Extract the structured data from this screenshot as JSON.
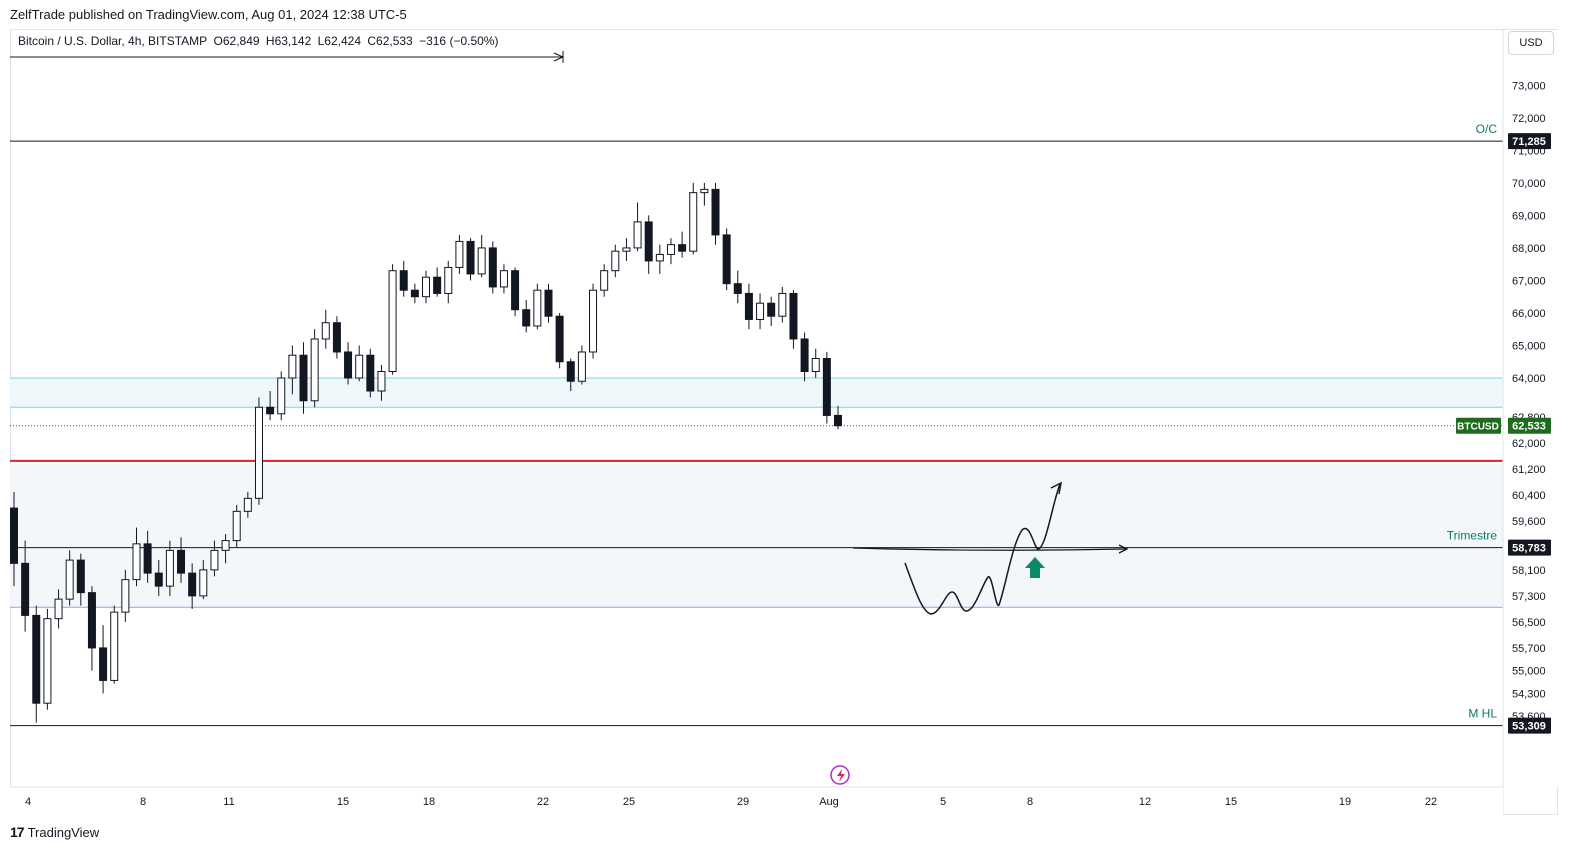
{
  "header": {
    "published_by": "ZelfTrade published on TradingView.com, Aug 01, 2024 12:38 UTC-5"
  },
  "legend": {
    "symbol_desc": "Bitcoin / U.S. Dollar, 4h, BITSTAMP",
    "open": "O62,849",
    "high": "H63,142",
    "low": "L62,424",
    "close": "C62,533",
    "change": "−316 (−0.50%)"
  },
  "currency_button": "USD",
  "footer": {
    "brand": "TradingView"
  },
  "colors": {
    "bear": "#131722",
    "bull_fill": "#ffffff",
    "zone_fill": "#eef8fb",
    "zone_line": "#7fd3e6",
    "support_zone_fill": "#f3f7fa",
    "support_line": "#90a8e0",
    "red_level": "#e31b2b",
    "price_tag": "#1e6b1e",
    "level_tag": "#131722",
    "buy_arrow": "#0b8a6a"
  },
  "chart_data": {
    "type": "candlestick",
    "symbol": "BTCUSD",
    "timeframe": "4h",
    "y_axis_ticks": [
      "73,000",
      "72,000",
      "71,000",
      "70,000",
      "69,000",
      "68,000",
      "67,000",
      "66,000",
      "65,000",
      "64,000",
      "62,800",
      "62,000",
      "61,200",
      "60,400",
      "59,600",
      "58,100",
      "57,300",
      "56,500",
      "55,700",
      "55,000",
      "54,300",
      "53,600"
    ],
    "x_axis_ticks": [
      "4",
      "8",
      "11",
      "15",
      "18",
      "22",
      "25",
      "29",
      "Aug",
      "5",
      "8",
      "12",
      "15",
      "19",
      "22"
    ],
    "last_price": {
      "label": "BTCUSD",
      "value": "62,533"
    },
    "levels": [
      {
        "value": "71,285",
        "label": "O/C",
        "color": "#131722"
      },
      {
        "value": "58,783",
        "label": "Trimestre",
        "color": "#131722"
      },
      {
        "value": "53,309",
        "label": "M HL",
        "color": "#131722"
      }
    ],
    "resistance_zone": {
      "top": 64000,
      "bottom": 63100
    },
    "red_level": 61450,
    "support_zone": {
      "top": 61350,
      "bottom": 56950
    },
    "candles_approx": [
      [
        60000,
        60500,
        57600,
        58300
      ],
      [
        58300,
        59000,
        56200,
        56700
      ],
      [
        56700,
        57000,
        53400,
        54000
      ],
      [
        54000,
        56900,
        53800,
        56600
      ],
      [
        56600,
        57500,
        56300,
        57200
      ],
      [
        57200,
        58700,
        57000,
        58400
      ],
      [
        58400,
        58600,
        57000,
        57400
      ],
      [
        57400,
        57600,
        55000,
        55700
      ],
      [
        55700,
        56400,
        54300,
        54700
      ],
      [
        54700,
        57000,
        54600,
        56800
      ],
      [
        56800,
        58100,
        56500,
        57800
      ],
      [
        57800,
        59400,
        57600,
        58900
      ],
      [
        58900,
        59300,
        57700,
        58000
      ],
      [
        58000,
        58400,
        57300,
        57600
      ],
      [
        57600,
        59000,
        57300,
        58700
      ],
      [
        58700,
        59100,
        57700,
        58000
      ],
      [
        58000,
        58300,
        56900,
        57300
      ],
      [
        57300,
        58400,
        57200,
        58100
      ],
      [
        58100,
        59000,
        57900,
        58700
      ],
      [
        58700,
        59200,
        58300,
        59000
      ],
      [
        59000,
        60100,
        58800,
        59900
      ],
      [
        59900,
        60500,
        59700,
        60300
      ],
      [
        60300,
        63400,
        60100,
        63100
      ],
      [
        63100,
        63600,
        62700,
        62900
      ],
      [
        62900,
        64200,
        62700,
        64000
      ],
      [
        64000,
        65000,
        63500,
        64700
      ],
      [
        64700,
        65100,
        62900,
        63300
      ],
      [
        63300,
        65500,
        63100,
        65200
      ],
      [
        65200,
        66100,
        64900,
        65700
      ],
      [
        65700,
        65900,
        64600,
        64800
      ],
      [
        64800,
        65100,
        63800,
        64000
      ],
      [
        64000,
        65000,
        63900,
        64700
      ],
      [
        64700,
        64900,
        63400,
        63600
      ],
      [
        63600,
        64400,
        63300,
        64200
      ],
      [
        64200,
        67500,
        64100,
        67300
      ],
      [
        67300,
        67600,
        66500,
        66700
      ],
      [
        66700,
        66900,
        66300,
        66500
      ],
      [
        66500,
        67300,
        66300,
        67100
      ],
      [
        67100,
        67400,
        66500,
        66600
      ],
      [
        66600,
        67600,
        66300,
        67400
      ],
      [
        67400,
        68400,
        67200,
        68200
      ],
      [
        68200,
        68300,
        67000,
        67200
      ],
      [
        67200,
        68400,
        67100,
        68000
      ],
      [
        68000,
        68200,
        66600,
        66800
      ],
      [
        66800,
        67500,
        66600,
        67300
      ],
      [
        67300,
        67400,
        65900,
        66100
      ],
      [
        66100,
        66400,
        65400,
        65600
      ],
      [
        65600,
        66900,
        65500,
        66700
      ],
      [
        66700,
        66900,
        65700,
        65900
      ],
      [
        65900,
        66000,
        64300,
        64500
      ],
      [
        64500,
        64600,
        63600,
        63900
      ],
      [
        63900,
        65000,
        63800,
        64800
      ],
      [
        64800,
        66900,
        64600,
        66700
      ],
      [
        66700,
        67500,
        66500,
        67300
      ],
      [
        67300,
        68100,
        67100,
        67900
      ],
      [
        67900,
        68300,
        67600,
        68000
      ],
      [
        68000,
        69400,
        67900,
        68800
      ],
      [
        68800,
        69000,
        67200,
        67600
      ],
      [
        67600,
        68100,
        67200,
        67800
      ],
      [
        67800,
        68300,
        67500,
        68100
      ],
      [
        68100,
        68500,
        67700,
        67900
      ],
      [
        67900,
        70000,
        67800,
        69700
      ],
      [
        69700,
        70000,
        69300,
        69800
      ],
      [
        69800,
        70000,
        68100,
        68400
      ],
      [
        68400,
        68600,
        66700,
        66900
      ],
      [
        66900,
        67300,
        66300,
        66600
      ],
      [
        66600,
        66900,
        65500,
        65800
      ],
      [
        65800,
        66600,
        65500,
        66300
      ],
      [
        66300,
        66500,
        65600,
        65900
      ],
      [
        65900,
        66800,
        65700,
        66600
      ],
      [
        66600,
        66700,
        64900,
        65200
      ],
      [
        65200,
        65400,
        63900,
        64200
      ],
      [
        64200,
        64900,
        64000,
        64600
      ],
      [
        64600,
        64800,
        62600,
        62849
      ],
      [
        62849,
        63142,
        62424,
        62533
      ]
    ],
    "drawing_annotations": [
      "projection-curve",
      "horizontal-arrow",
      "buy-arrow"
    ]
  }
}
